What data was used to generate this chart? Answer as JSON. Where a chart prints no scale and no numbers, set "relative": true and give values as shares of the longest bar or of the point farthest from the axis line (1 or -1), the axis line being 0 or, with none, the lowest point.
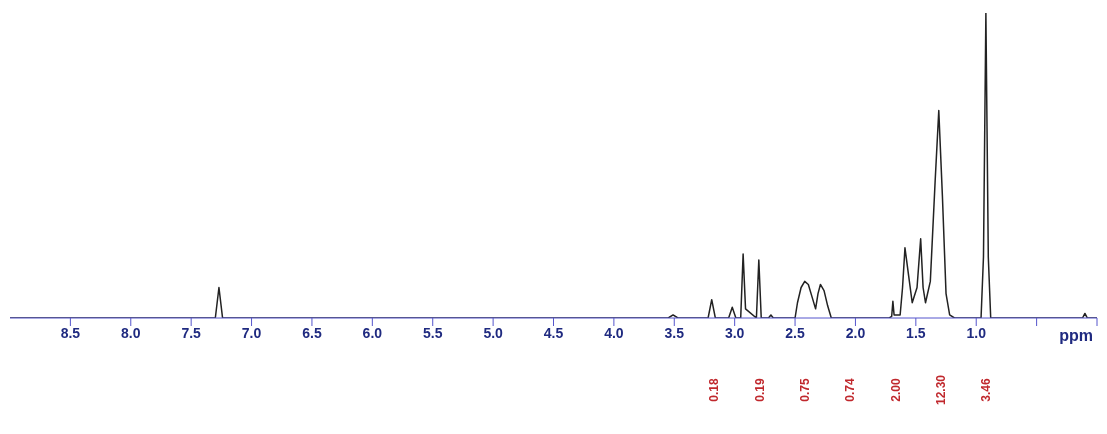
{
  "chart_data": {
    "type": "line",
    "relative": true,
    "xlabel": "ppm",
    "xlim": [
      9.0,
      0.0
    ],
    "xticks": [
      8.5,
      {
        "value": 8,
        "label": "8.0"
      },
      7.5,
      {
        "value": 7,
        "label": "7.0"
      },
      6.5,
      {
        "value": 6,
        "label": "6.0"
      },
      5.5,
      {
        "value": 5,
        "label": "5.0"
      },
      4.5,
      {
        "value": 4,
        "label": "4.0"
      },
      3.5,
      {
        "value": 3,
        "label": "3.0"
      },
      2.5,
      {
        "value": 2,
        "label": "2.0"
      },
      1.5,
      {
        "value": 1,
        "label": "1.0"
      },
      {
        "value": 0.5,
        "label": null
      },
      {
        "value": 0.0,
        "label": null
      }
    ],
    "marker": "none",
    "line_style": "solid",
    "series": [
      {
        "color": "#222222",
        "x": [
          9.0,
          7.3,
          7.27,
          7.24,
          3.55,
          3.51,
          3.47,
          3.22,
          3.19,
          3.16,
          3.05,
          3.02,
          2.99,
          2.95,
          2.93,
          2.91,
          2.82,
          2.8,
          2.78,
          2.72,
          2.7,
          2.68,
          2.5,
          2.48,
          2.45,
          2.42,
          2.39,
          2.36,
          2.33,
          2.31,
          2.29,
          2.26,
          2.23,
          2.2,
          1.72,
          1.7,
          1.69,
          1.68,
          1.63,
          1.61,
          1.59,
          1.56,
          1.53,
          1.49,
          1.46,
          1.44,
          1.42,
          1.38,
          1.34,
          1.31,
          1.28,
          1.25,
          1.22,
          1.18,
          0.96,
          0.94,
          0.92,
          0.9,
          0.88,
          0.12,
          0.1,
          0.08,
          0.0
        ],
        "values": [
          0,
          0,
          0.1,
          0,
          0,
          0.01,
          0,
          0,
          0.06,
          0,
          0,
          0.035,
          0,
          0,
          0.21,
          0.03,
          0,
          0.19,
          0,
          0,
          0.01,
          0,
          0,
          0.05,
          0.1,
          0.12,
          0.11,
          0.07,
          0.03,
          0.08,
          0.11,
          0.09,
          0.04,
          0,
          0,
          0.005,
          0.055,
          0.01,
          0.01,
          0.1,
          0.23,
          0.14,
          0.05,
          0.1,
          0.26,
          0.1,
          0.05,
          0.12,
          0.45,
          0.68,
          0.4,
          0.08,
          0.01,
          0,
          0,
          0.2,
          1.0,
          0.2,
          0,
          0,
          0.015,
          0,
          0
        ]
      }
    ],
    "annotations": [
      "0.18",
      "0.19",
      "0.75",
      "0.74",
      "2.00",
      "12.30",
      "3.46"
    ]
  }
}
